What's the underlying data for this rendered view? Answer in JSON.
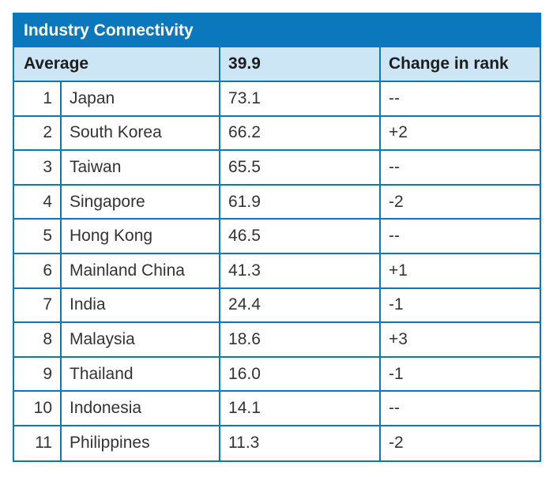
{
  "table": {
    "title": "Industry Connectivity",
    "header": {
      "label": "Average",
      "value": "39.9",
      "change": "Change in rank"
    },
    "rows": [
      {
        "rank": "1",
        "country": "Japan",
        "value": "73.1",
        "change": "--"
      },
      {
        "rank": "2",
        "country": "South Korea",
        "value": "66.2",
        "change": "+2"
      },
      {
        "rank": "3",
        "country": "Taiwan",
        "value": "65.5",
        "change": "--"
      },
      {
        "rank": "4",
        "country": "Singapore",
        "value": "61.9",
        "change": "-2"
      },
      {
        "rank": "5",
        "country": "Hong Kong",
        "value": "46.5",
        "change": "--"
      },
      {
        "rank": "6",
        "country": "Mainland China",
        "value": "41.3",
        "change": "+1"
      },
      {
        "rank": "7",
        "country": "India",
        "value": "24.4",
        "change": "-1"
      },
      {
        "rank": "8",
        "country": "Malaysia",
        "value": "18.6",
        "change": "+3"
      },
      {
        "rank": "9",
        "country": "Thailand",
        "value": "16.0",
        "change": "-1"
      },
      {
        "rank": "10",
        "country": "Indonesia",
        "value": "14.1",
        "change": "--"
      },
      {
        "rank": "11",
        "country": "Philippines",
        "value": "11.3",
        "change": "-2"
      }
    ]
  },
  "colors": {
    "accent": "#0b78be",
    "header_bg": "#cde6f6"
  }
}
